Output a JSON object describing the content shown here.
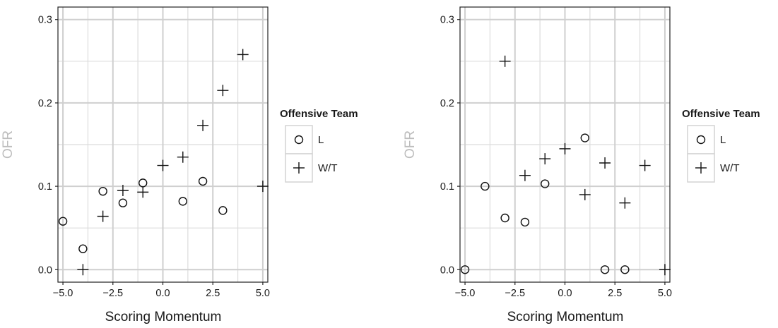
{
  "chart_data": [
    {
      "type": "scatter",
      "xlabel": "Scoring Momentum",
      "ylabel": "OFR",
      "xlim": [
        -5.25,
        5.25
      ],
      "ylim": [
        -0.015,
        0.315
      ],
      "xticks": [
        "-5.0",
        "-2.5",
        "0.0",
        "2.5",
        "5.0"
      ],
      "yticks": [
        "0.0",
        "0.1",
        "0.2",
        "0.3"
      ],
      "grid": true,
      "legend": {
        "title": "Offensive Team",
        "placement": "right"
      },
      "series": [
        {
          "name": "L",
          "marker": "circle",
          "points": [
            {
              "x": -5,
              "y": 0.058
            },
            {
              "x": -4,
              "y": 0.025
            },
            {
              "x": -3,
              "y": 0.094
            },
            {
              "x": -2,
              "y": 0.08
            },
            {
              "x": -1,
              "y": 0.104
            },
            {
              "x": 1,
              "y": 0.082
            },
            {
              "x": 2,
              "y": 0.106
            },
            {
              "x": 3,
              "y": 0.071
            }
          ]
        },
        {
          "name": "W/T",
          "marker": "plus",
          "points": [
            {
              "x": -4,
              "y": 0.0
            },
            {
              "x": -3,
              "y": 0.064
            },
            {
              "x": -2,
              "y": 0.095
            },
            {
              "x": -1,
              "y": 0.093
            },
            {
              "x": 0,
              "y": 0.125
            },
            {
              "x": 1,
              "y": 0.135
            },
            {
              "x": 2,
              "y": 0.173
            },
            {
              "x": 3,
              "y": 0.215
            },
            {
              "x": 4,
              "y": 0.258
            },
            {
              "x": 5,
              "y": 0.1
            }
          ]
        }
      ]
    },
    {
      "type": "scatter",
      "xlabel": "Scoring Momentum",
      "ylabel": "OFR",
      "xlim": [
        -5.25,
        5.25
      ],
      "ylim": [
        -0.015,
        0.315
      ],
      "xticks": [
        "-5.0",
        "-2.5",
        "0.0",
        "2.5",
        "5.0"
      ],
      "yticks": [
        "0.0",
        "0.1",
        "0.2",
        "0.3"
      ],
      "grid": true,
      "legend": {
        "title": "Offensive Team",
        "placement": "right"
      },
      "series": [
        {
          "name": "L",
          "marker": "circle",
          "points": [
            {
              "x": -5,
              "y": 0.0
            },
            {
              "x": -4,
              "y": 0.1
            },
            {
              "x": -3,
              "y": 0.062
            },
            {
              "x": -2,
              "y": 0.057
            },
            {
              "x": -1,
              "y": 0.103
            },
            {
              "x": 1,
              "y": 0.158
            },
            {
              "x": 2,
              "y": 0.0
            },
            {
              "x": 3,
              "y": 0.0
            }
          ]
        },
        {
          "name": "W/T",
          "marker": "plus",
          "points": [
            {
              "x": -3,
              "y": 0.25
            },
            {
              "x": -2,
              "y": 0.113
            },
            {
              "x": -1,
              "y": 0.133
            },
            {
              "x": 0,
              "y": 0.145
            },
            {
              "x": 1,
              "y": 0.09
            },
            {
              "x": 2,
              "y": 0.128
            },
            {
              "x": 3,
              "y": 0.08
            },
            {
              "x": 4,
              "y": 0.125
            },
            {
              "x": 5,
              "y": 0.0
            }
          ]
        }
      ]
    }
  ]
}
